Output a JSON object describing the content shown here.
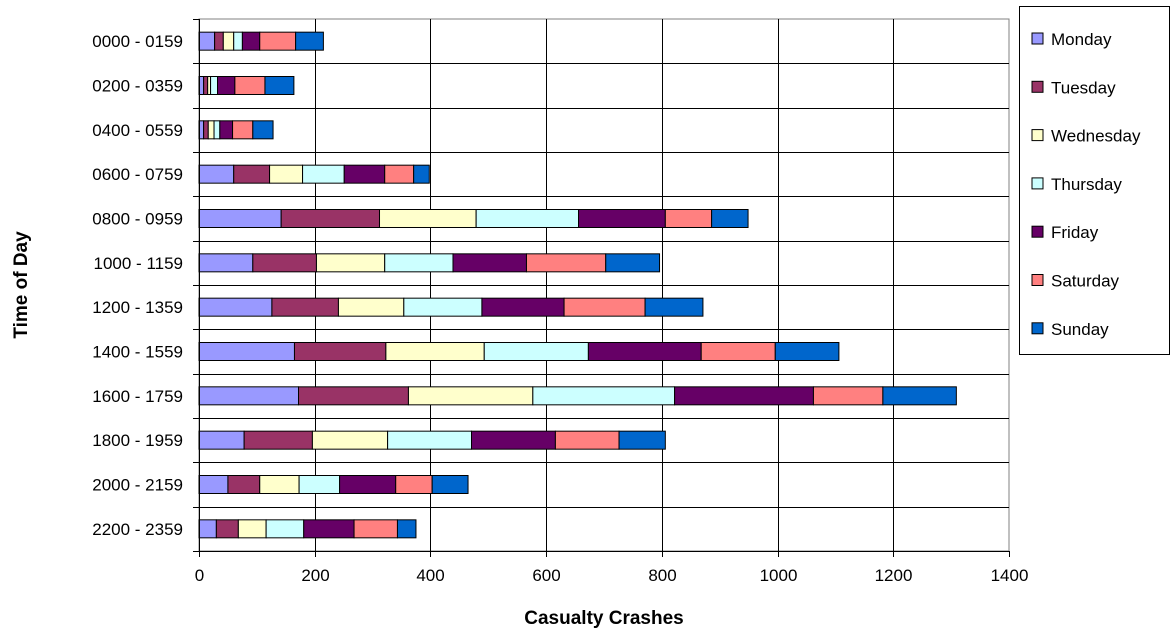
{
  "chart_data": {
    "type": "bar",
    "orientation": "horizontal",
    "stacked": true,
    "title": "",
    "xlabel": "Casualty Crashes",
    "ylabel": "Time of Day",
    "xlim": [
      0,
      1400
    ],
    "xticks": [
      0,
      200,
      400,
      600,
      800,
      1000,
      1200,
      1400
    ],
    "grid": true,
    "legend_position": "right",
    "categories": [
      "0000 - 0159",
      "0200 - 0359",
      "0400 - 0559",
      "0600 - 0759",
      "0800 - 0959",
      "1000 - 1159",
      "1200 - 1359",
      "1400 - 1559",
      "1600 - 1759",
      "1800 - 1959",
      "2000 - 2159",
      "2200 - 2359"
    ],
    "series": [
      {
        "name": "Monday",
        "color": "#9999FF",
        "values": [
          27,
          8,
          8,
          60,
          142,
          93,
          126,
          165,
          172,
          78,
          50,
          30
        ]
      },
      {
        "name": "Tuesday",
        "color": "#993366",
        "values": [
          15,
          7,
          8,
          62,
          170,
          110,
          115,
          158,
          190,
          118,
          55,
          38
        ]
      },
      {
        "name": "Wednesday",
        "color": "#FFFFCC",
        "values": [
          18,
          5,
          10,
          57,
          167,
          118,
          113,
          170,
          215,
          130,
          68,
          48
        ]
      },
      {
        "name": "Thursday",
        "color": "#CCFFFF",
        "values": [
          15,
          12,
          10,
          72,
          177,
          118,
          135,
          180,
          245,
          145,
          70,
          65
        ]
      },
      {
        "name": "Friday",
        "color": "#660066",
        "values": [
          30,
          30,
          22,
          70,
          150,
          127,
          142,
          195,
          240,
          145,
          97,
          87
        ]
      },
      {
        "name": "Saturday",
        "color": "#FF8080",
        "values": [
          62,
          52,
          35,
          50,
          80,
          137,
          140,
          128,
          120,
          110,
          63,
          75
        ]
      },
      {
        "name": "Sunday",
        "color": "#0066CC",
        "values": [
          48,
          50,
          35,
          27,
          63,
          93,
          100,
          110,
          127,
          80,
          62,
          32
        ]
      }
    ]
  }
}
